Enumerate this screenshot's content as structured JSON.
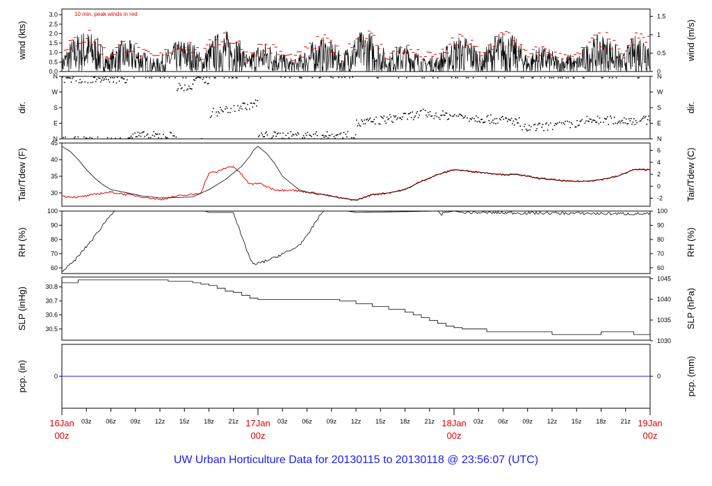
{
  "title": "UW Urban Horticulture Data for 20130115  to  20130118 @ 23:56:07  (UTC)",
  "x_axis": {
    "major_ticks": [
      {
        "hour": 0,
        "day": "16Jan",
        "time": "00z"
      },
      {
        "hour": 24,
        "day": "17Jan",
        "time": "00z"
      },
      {
        "hour": 48,
        "day": "18Jan",
        "time": "00z"
      },
      {
        "hour": 72,
        "day": "19Jan",
        "time": "00z"
      }
    ],
    "minor_ticks": [
      {
        "hour": 3,
        "label": "03z"
      },
      {
        "hour": 6,
        "label": "06z"
      },
      {
        "hour": 9,
        "label": "09z"
      },
      {
        "hour": 12,
        "label": "12z"
      },
      {
        "hour": 15,
        "label": "15z"
      },
      {
        "hour": 18,
        "label": "18z"
      },
      {
        "hour": 21,
        "label": "21z"
      },
      {
        "hour": 27,
        "label": "03z"
      },
      {
        "hour": 30,
        "label": "06z"
      },
      {
        "hour": 33,
        "label": "09z"
      },
      {
        "hour": 36,
        "label": "12z"
      },
      {
        "hour": 39,
        "label": "15z"
      },
      {
        "hour": 42,
        "label": "18z"
      },
      {
        "hour": 45,
        "label": "21z"
      },
      {
        "hour": 51,
        "label": "03z"
      },
      {
        "hour": 54,
        "label": "06z"
      },
      {
        "hour": 57,
        "label": "09z"
      },
      {
        "hour": 60,
        "label": "12z"
      },
      {
        "hour": 63,
        "label": "15z"
      },
      {
        "hour": 66,
        "label": "18z"
      },
      {
        "hour": 69,
        "label": "21z"
      }
    ]
  },
  "panels": [
    {
      "id": "wind",
      "left_label": "wind (kts)",
      "right_label": "wind (m/s)",
      "annotation": "10 min. peak winds in red",
      "left_range": [
        0,
        3.3
      ],
      "left_ticks": [
        "0.0",
        "0.5",
        "1.0",
        "1.5",
        "2.0",
        "2.5",
        "3.0"
      ],
      "right_ticks": [
        {
          "v": 0,
          "label": "0"
        },
        {
          "v": 0.5,
          "label": "0.5"
        },
        {
          "v": 1,
          "label": "1"
        },
        {
          "v": 1.5,
          "label": "1.5"
        }
      ],
      "right_factor": 1.944
    },
    {
      "id": "dir",
      "left_label": "dir.",
      "right_label": "dir.",
      "left_range": [
        0,
        360
      ],
      "left_ticks": [
        {
          "v": 0,
          "label": "N"
        },
        {
          "v": 90,
          "label": "E"
        },
        {
          "v": 180,
          "label": "S"
        },
        {
          "v": 270,
          "label": "W"
        },
        {
          "v": 360,
          "label": "N"
        }
      ],
      "right_ticks": [
        {
          "v": 0,
          "label": "N"
        },
        {
          "v": 90,
          "label": "E"
        },
        {
          "v": 180,
          "label": "S"
        },
        {
          "v": 270,
          "label": "W"
        },
        {
          "v": 360,
          "label": "N"
        }
      ]
    },
    {
      "id": "temp",
      "left_label": "Tair/Tdew (F)",
      "right_label": "Tair/Tdew (C)",
      "left_range": [
        26,
        45
      ],
      "left_ticks": [
        "30",
        "35",
        "40",
        "45"
      ],
      "right_ticks": [
        "-2",
        "0",
        "2",
        "4",
        "6"
      ]
    },
    {
      "id": "rh",
      "left_label": "RH (%)",
      "right_label": "RH (%)",
      "left_range": [
        56,
        100
      ],
      "left_ticks": [
        "60",
        "70",
        "80",
        "90",
        "100"
      ],
      "right_ticks": [
        "60",
        "70",
        "80",
        "90",
        "100"
      ]
    },
    {
      "id": "slp",
      "left_label": "SLP (inHg)",
      "right_label": "SLP (hPa)",
      "left_range": [
        30.42,
        30.87
      ],
      "left_ticks": [
        "30.5",
        "30.6",
        "30.7",
        "30.8"
      ],
      "right_ticks": [
        "1030",
        "1035",
        "1040",
        "1045"
      ]
    },
    {
      "id": "pcp",
      "left_label": "pcp. (in)",
      "right_label": "pcp. (mm)",
      "left_range": [
        -1,
        1
      ],
      "left_ticks": [
        "0"
      ],
      "right_ticks": [
        "0"
      ]
    }
  ],
  "colors": {
    "primary": "#000000",
    "peak": "#e00000",
    "precip": "#1a1aff",
    "title": "#1a1aff",
    "day_labels": "#e00000"
  },
  "chart_data": {
    "type": "line",
    "x_unit": "hours since 16Jan 00z (UTC)",
    "x_range": [
      0,
      72
    ],
    "series": [
      {
        "name": "Tair",
        "unit": "F",
        "x": [
          0,
          1,
          2,
          3,
          4,
          5,
          6,
          7,
          8,
          9,
          10,
          11,
          12,
          14,
          16,
          18,
          20,
          21,
          22,
          23,
          23.5,
          24,
          25,
          26,
          27,
          28,
          29,
          30,
          32,
          34,
          36,
          38,
          40,
          42,
          44,
          46,
          48,
          50,
          52,
          54,
          56,
          58,
          60,
          62,
          64,
          66,
          68,
          70,
          72
        ],
        "y": [
          44,
          42.5,
          40,
          37,
          34.5,
          32.5,
          31,
          30.5,
          30,
          29.5,
          29,
          28.8,
          28.5,
          28.6,
          28.8,
          31,
          34,
          36,
          38,
          41,
          43,
          44,
          42,
          39,
          35,
          33,
          31,
          30.2,
          29.5,
          28.5,
          27.8,
          29.5,
          30,
          31,
          33.5,
          35.5,
          37,
          36.5,
          36,
          35.5,
          35.5,
          34.5,
          34,
          33.5,
          33.5,
          34,
          35,
          37,
          37
        ]
      },
      {
        "name": "Tdew",
        "unit": "F",
        "x": [
          0,
          2,
          4,
          5,
          6,
          8,
          10,
          12,
          14,
          16,
          17,
          18,
          19,
          20,
          21,
          22,
          23,
          24,
          25,
          26,
          27,
          28,
          29,
          30,
          32,
          34,
          36,
          38,
          40,
          42,
          44,
          46,
          48,
          50,
          52,
          54,
          56,
          58,
          60,
          62,
          64,
          66,
          68,
          70,
          72
        ],
        "y": [
          29,
          28.7,
          29.5,
          30,
          30.2,
          29.5,
          28.8,
          28,
          29,
          29.5,
          30,
          36,
          36.3,
          37.5,
          38,
          35.5,
          32.5,
          33,
          32,
          31,
          30.8,
          31,
          30.5,
          30.3,
          29.5,
          28.5,
          27.8,
          29.5,
          30,
          31,
          33.5,
          35.5,
          37,
          36.5,
          36,
          35.5,
          35.5,
          34.5,
          34,
          33.5,
          33.5,
          34,
          35,
          37,
          37
        ]
      },
      {
        "name": "RH",
        "unit": "%",
        "x": [
          0,
          1,
          2,
          3,
          4,
          5,
          6,
          6.5,
          7,
          17.5,
          18,
          20,
          21,
          22,
          23,
          23.5,
          24,
          25,
          26,
          27,
          28,
          29,
          30,
          31,
          32,
          35,
          36,
          46,
          46.5,
          47,
          48,
          49,
          72
        ],
        "y": [
          58,
          62,
          68,
          75,
          82,
          90,
          98,
          100,
          100,
          100,
          99,
          99,
          99,
          82,
          67,
          62,
          63,
          65,
          67,
          70,
          72,
          76,
          82,
          92,
          100,
          100,
          99,
          100,
          98,
          99,
          100,
          99,
          98
        ]
      },
      {
        "name": "SLP",
        "unit": "inHg",
        "x": [
          0,
          2,
          3,
          6,
          9,
          12,
          13,
          15,
          16,
          17,
          18,
          19,
          20,
          21,
          22,
          23,
          24,
          25,
          26,
          28,
          30,
          32,
          34,
          36,
          38,
          40,
          42,
          43,
          44,
          45,
          46,
          47,
          48,
          49,
          50,
          52,
          54,
          56,
          58,
          60,
          62,
          64,
          66,
          68,
          70,
          72
        ],
        "y": [
          30.83,
          30.85,
          30.85,
          30.85,
          30.85,
          30.85,
          30.84,
          30.84,
          30.83,
          30.82,
          30.81,
          30.79,
          30.77,
          30.76,
          30.74,
          30.72,
          30.71,
          30.71,
          30.71,
          30.71,
          30.71,
          30.71,
          30.7,
          30.68,
          30.66,
          30.64,
          30.62,
          30.6,
          30.58,
          30.56,
          30.54,
          30.52,
          30.51,
          30.5,
          30.5,
          30.48,
          30.48,
          30.48,
          30.48,
          30.46,
          30.46,
          30.46,
          30.48,
          30.48,
          30.46,
          30.46
        ]
      },
      {
        "name": "pcp",
        "unit": "in",
        "x": [
          0,
          72
        ],
        "y": [
          0,
          0
        ]
      }
    ]
  }
}
